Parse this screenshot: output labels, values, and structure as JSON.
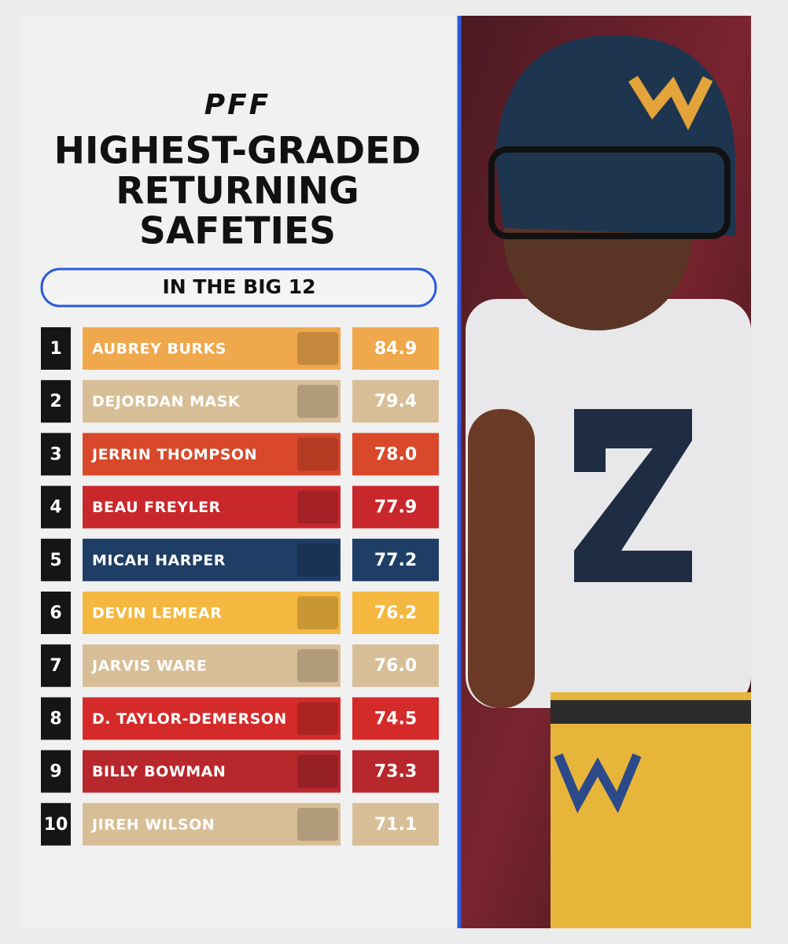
{
  "header": {
    "logo": "PFF",
    "title_lines": [
      "HIGHEST-GRADED",
      "RETURNING",
      "SAFETIES"
    ],
    "subtitle": "IN THE BIG 12"
  },
  "table": {
    "rows": [
      {
        "rank": "1",
        "name": "AUBREY BURKS",
        "grade": "84.9",
        "color": "#f0a84c"
      },
      {
        "rank": "2",
        "name": "DEJORDAN MASK",
        "grade": "79.4",
        "color": "#d8be97"
      },
      {
        "rank": "3",
        "name": "JERRIN THOMPSON",
        "grade": "78.0",
        "color": "#d9482a"
      },
      {
        "rank": "4",
        "name": "BEAU FREYLER",
        "grade": "77.9",
        "color": "#c8282c"
      },
      {
        "rank": "5",
        "name": "MICAH HARPER",
        "grade": "77.2",
        "color": "#1f3e66"
      },
      {
        "rank": "6",
        "name": "DEVIN LEMEAR",
        "grade": "76.2",
        "color": "#f4b840"
      },
      {
        "rank": "7",
        "name": "JARVIS WARE",
        "grade": "76.0",
        "color": "#d8be97"
      },
      {
        "rank": "8",
        "name": "D. TAYLOR-DEMERSON",
        "grade": "74.5",
        "color": "#d42b2a"
      },
      {
        "rank": "9",
        "name": "BILLY BOWMAN",
        "grade": "73.3",
        "color": "#b8272c"
      },
      {
        "rank": "10",
        "name": "JIREH WILSON",
        "grade": "71.1",
        "color": "#d8be97"
      }
    ]
  }
}
